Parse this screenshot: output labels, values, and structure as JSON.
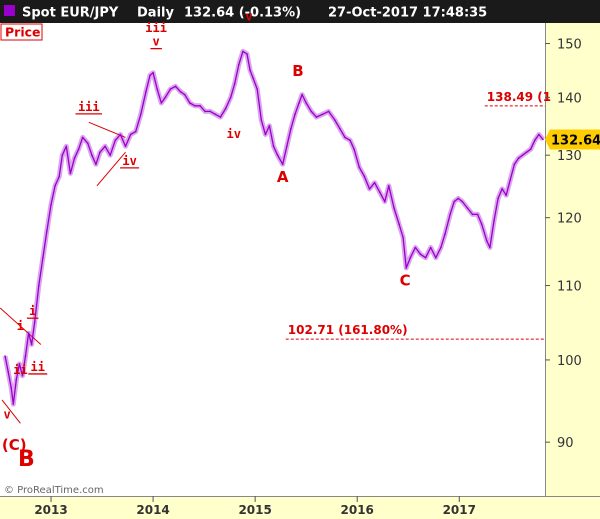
{
  "header": {
    "instrument": "Spot EUR/JPY",
    "period": "Daily",
    "quote": "132.64 (-0.13%)",
    "datetime": "27-Oct-2017 17:48:35"
  },
  "panel_label": "Price",
  "credit": "© ProRealTime.com",
  "colors": {
    "background": "#ffffff",
    "axis_background": "#ffffcc",
    "header_background": "#1a1a1a",
    "series": "#9900cc",
    "annotation": "#dd0000",
    "last_price_badge": "#ffcc00"
  },
  "chart_data": {
    "type": "line",
    "title": "Spot EUR/JPY Daily",
    "xlabel": "",
    "ylabel": "",
    "x_ticks": [
      "2013",
      "2014",
      "2015",
      "2016",
      "2017"
    ],
    "x_tick_values": [
      2013.0,
      2014.0,
      2015.0,
      2016.0,
      2017.0
    ],
    "xlim": [
      2012.5,
      2017.84
    ],
    "y_ticks": [
      "90",
      "100",
      "110",
      "120",
      "130",
      "140",
      "150"
    ],
    "y_tick_values": [
      90,
      100,
      110,
      120,
      130,
      140,
      150
    ],
    "ylim": [
      84,
      154
    ],
    "y_scale": "log",
    "grid": false,
    "series": [
      {
        "values": [
          [
            2012.55,
            100.5
          ],
          [
            2012.58,
            98.5
          ],
          [
            2012.61,
            96.5
          ],
          [
            2012.63,
            94.5
          ],
          [
            2012.66,
            97.5
          ],
          [
            2012.69,
            99.5
          ],
          [
            2012.72,
            98.0
          ],
          [
            2012.75,
            100.5
          ],
          [
            2012.78,
            103.5
          ],
          [
            2012.81,
            102.0
          ],
          [
            2012.84,
            105.0
          ],
          [
            2012.88,
            110.0
          ],
          [
            2012.92,
            114.0
          ],
          [
            2012.96,
            118.0
          ],
          [
            2013.0,
            122.0
          ],
          [
            2013.04,
            125.0
          ],
          [
            2013.08,
            126.5
          ],
          [
            2013.11,
            130.0
          ],
          [
            2013.15,
            131.5
          ],
          [
            2013.19,
            127.0
          ],
          [
            2013.23,
            129.5
          ],
          [
            2013.27,
            131.0
          ],
          [
            2013.31,
            133.0
          ],
          [
            2013.36,
            132.0
          ],
          [
            2013.4,
            130.0
          ],
          [
            2013.44,
            128.5
          ],
          [
            2013.48,
            130.5
          ],
          [
            2013.53,
            131.5
          ],
          [
            2013.58,
            130.0
          ],
          [
            2013.63,
            132.5
          ],
          [
            2013.68,
            133.5
          ],
          [
            2013.73,
            131.5
          ],
          [
            2013.78,
            133.5
          ],
          [
            2013.83,
            134.0
          ],
          [
            2013.88,
            137.0
          ],
          [
            2013.93,
            141.0
          ],
          [
            2013.97,
            144.0
          ],
          [
            2014.0,
            144.5
          ],
          [
            2014.04,
            141.5
          ],
          [
            2014.08,
            139.0
          ],
          [
            2014.12,
            140.0
          ],
          [
            2014.17,
            141.5
          ],
          [
            2014.22,
            142.0
          ],
          [
            2014.27,
            141.0
          ],
          [
            2014.31,
            140.5
          ],
          [
            2014.36,
            139.0
          ],
          [
            2014.41,
            138.5
          ],
          [
            2014.46,
            138.5
          ],
          [
            2014.51,
            137.5
          ],
          [
            2014.56,
            137.5
          ],
          [
            2014.61,
            137.0
          ],
          [
            2014.66,
            136.5
          ],
          [
            2014.71,
            138.0
          ],
          [
            2014.76,
            140.0
          ],
          [
            2014.8,
            142.5
          ],
          [
            2014.84,
            146.0
          ],
          [
            2014.88,
            148.5
          ],
          [
            2014.92,
            148.0
          ],
          [
            2014.95,
            145.0
          ],
          [
            2014.98,
            143.5
          ],
          [
            2015.02,
            141.5
          ],
          [
            2015.06,
            136.0
          ],
          [
            2015.1,
            133.5
          ],
          [
            2015.14,
            135.0
          ],
          [
            2015.18,
            131.5
          ],
          [
            2015.22,
            130.0
          ],
          [
            2015.27,
            128.5
          ],
          [
            2015.31,
            131.5
          ],
          [
            2015.35,
            134.5
          ],
          [
            2015.39,
            137.0
          ],
          [
            2015.43,
            139.0
          ],
          [
            2015.46,
            140.5
          ],
          [
            2015.5,
            139.0
          ],
          [
            2015.55,
            137.5
          ],
          [
            2015.6,
            136.5
          ],
          [
            2015.66,
            137.0
          ],
          [
            2015.72,
            137.5
          ],
          [
            2015.78,
            136.0
          ],
          [
            2015.83,
            134.5
          ],
          [
            2015.88,
            133.0
          ],
          [
            2015.93,
            132.5
          ],
          [
            2015.97,
            131.0
          ],
          [
            2016.02,
            128.0
          ],
          [
            2016.07,
            126.5
          ],
          [
            2016.12,
            124.5
          ],
          [
            2016.17,
            125.5
          ],
          [
            2016.22,
            124.0
          ],
          [
            2016.27,
            122.5
          ],
          [
            2016.31,
            125.0
          ],
          [
            2016.36,
            121.5
          ],
          [
            2016.41,
            119.0
          ],
          [
            2016.45,
            117.0
          ],
          [
            2016.48,
            112.5
          ],
          [
            2016.52,
            114.0
          ],
          [
            2016.57,
            115.5
          ],
          [
            2016.62,
            114.5
          ],
          [
            2016.67,
            114.0
          ],
          [
            2016.72,
            115.5
          ],
          [
            2016.77,
            114.0
          ],
          [
            2016.82,
            115.5
          ],
          [
            2016.86,
            117.5
          ],
          [
            2016.91,
            120.5
          ],
          [
            2016.95,
            122.5
          ],
          [
            2016.99,
            123.0
          ],
          [
            2017.03,
            122.5
          ],
          [
            2017.08,
            121.5
          ],
          [
            2017.13,
            120.5
          ],
          [
            2017.18,
            120.5
          ],
          [
            2017.22,
            119.0
          ],
          [
            2017.27,
            116.5
          ],
          [
            2017.3,
            115.5
          ],
          [
            2017.34,
            119.5
          ],
          [
            2017.38,
            123.0
          ],
          [
            2017.42,
            124.5
          ],
          [
            2017.46,
            123.5
          ],
          [
            2017.5,
            126.0
          ],
          [
            2017.54,
            128.5
          ],
          [
            2017.58,
            129.5
          ],
          [
            2017.62,
            130.0
          ],
          [
            2017.66,
            130.5
          ],
          [
            2017.7,
            131.0
          ],
          [
            2017.74,
            132.5
          ],
          [
            2017.78,
            133.5
          ],
          [
            2017.82,
            132.64
          ]
        ]
      }
    ],
    "last_value_label": "132.64",
    "levels": [
      {
        "label": "138.49 (1",
        "value": 138.49,
        "x_start": 2017.25
      },
      {
        "label": "102.71 (161.80%)",
        "value": 102.71,
        "x_start": 2015.3
      }
    ],
    "annotations": [
      {
        "text": "v",
        "x": 2012.57,
        "y": 92.8,
        "underline": false
      },
      {
        "text": "(C)",
        "x": 2012.64,
        "y": 89.1,
        "underline": false
      },
      {
        "text": "i",
        "x": 2012.7,
        "y": 103.9,
        "underline": false
      },
      {
        "text": "i",
        "x": 2012.82,
        "y": 105.9,
        "underline": true
      },
      {
        "text": "ii",
        "x": 2012.7,
        "y": 98.2,
        "underline": false
      },
      {
        "text": "ii",
        "x": 2012.87,
        "y": 98.6,
        "underline": true
      },
      {
        "text": "iii",
        "x": 2013.37,
        "y": 137.6,
        "underline": true
      },
      {
        "text": "iv",
        "x": 2013.77,
        "y": 128.4,
        "underline": true
      },
      {
        "text": "iii",
        "x": 2014.03,
        "y": 152.2,
        "underline": false
      },
      {
        "text": "v",
        "x": 2014.03,
        "y": 149.6,
        "underline": true
      },
      {
        "text": "iv",
        "x": 2014.79,
        "y": 132.9,
        "underline": false
      },
      {
        "text": "v",
        "x": 2014.94,
        "y": 154.5,
        "underline": false
      },
      {
        "text": "A",
        "x": 2015.27,
        "y": 125.6,
        "underline": false
      },
      {
        "text": "B",
        "x": 2015.42,
        "y": 143.9,
        "underline": false
      },
      {
        "text": "C",
        "x": 2016.47,
        "y": 110.0,
        "underline": false
      }
    ],
    "wave_label_large": "B"
  }
}
